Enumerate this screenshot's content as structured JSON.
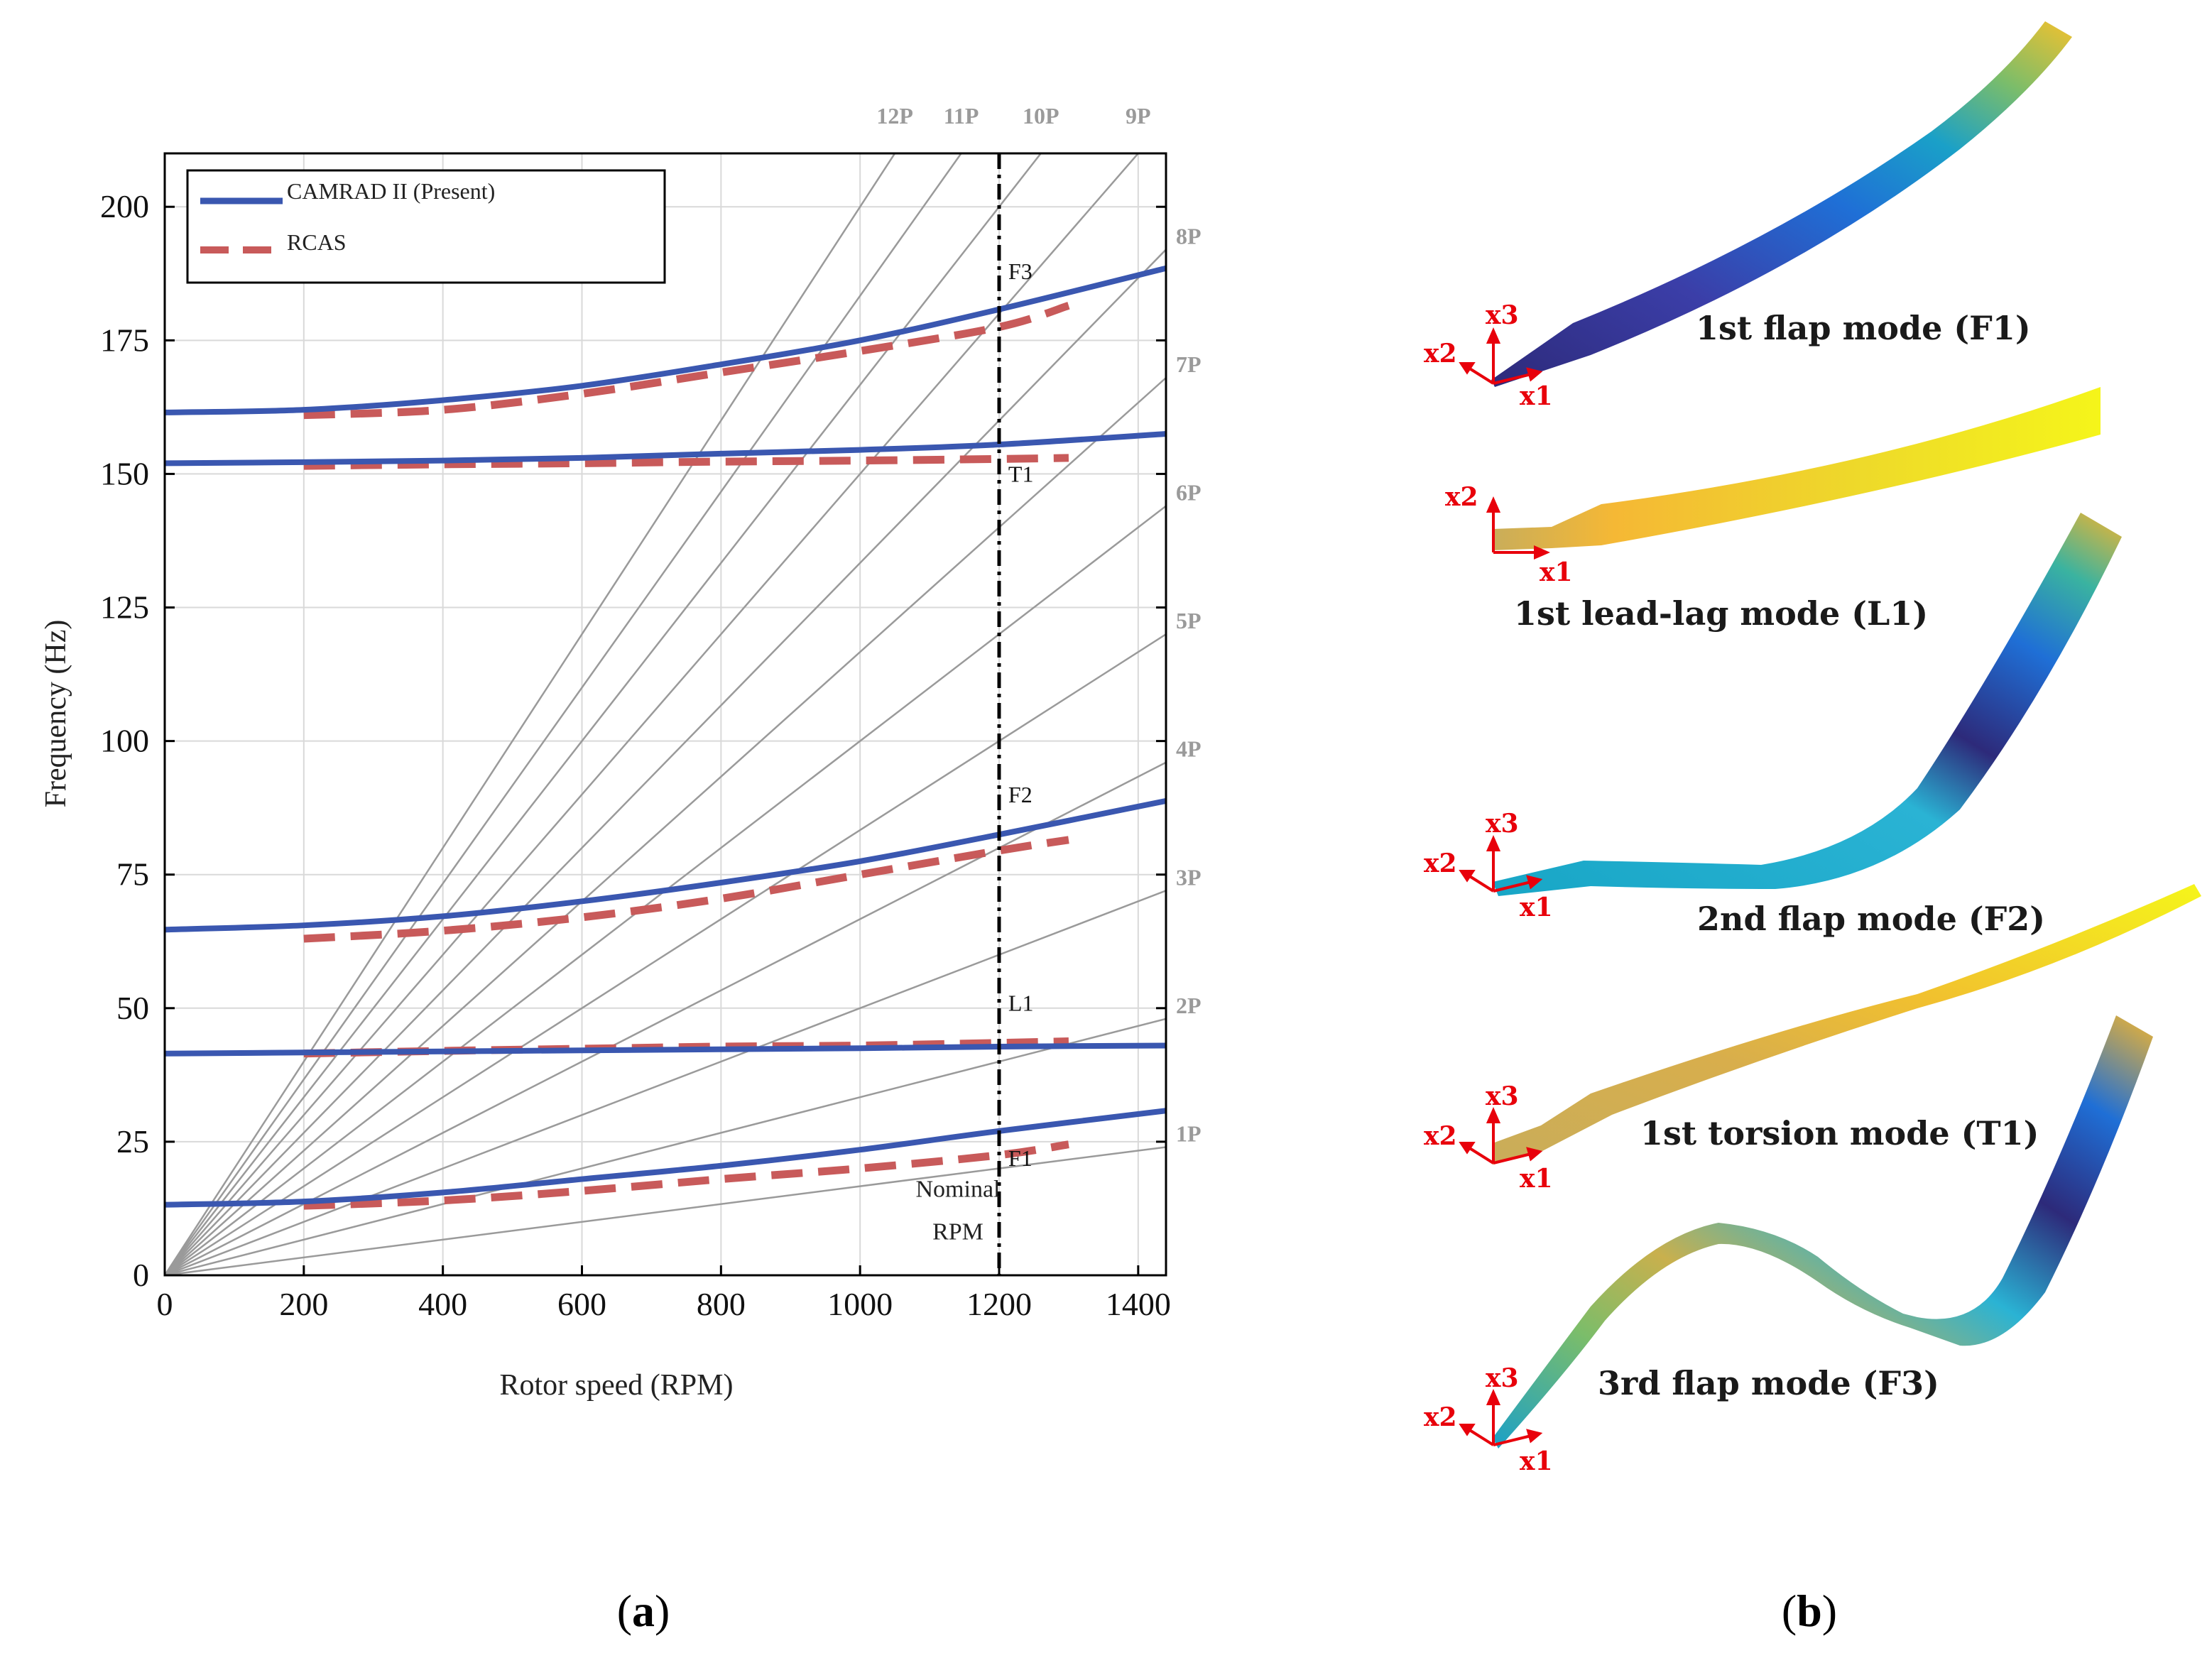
{
  "chart_data": {
    "type": "line",
    "title": "",
    "xlabel": "Rotor speed (RPM)",
    "ylabel": "Frequency (Hz)",
    "xlim": [
      0,
      1440
    ],
    "ylim": [
      0,
      210
    ],
    "xticks": [
      0,
      200,
      400,
      600,
      800,
      1000,
      1200,
      1400
    ],
    "yticks": [
      0,
      25,
      50,
      75,
      100,
      125,
      150,
      175,
      200
    ],
    "grid": true,
    "legend": {
      "position": "top-left",
      "entries": [
        {
          "label": "CAMRAD II (Present)",
          "color": "#3a57b0",
          "style": "solid"
        },
        {
          "label": "RCAS",
          "color": "#c85a5a",
          "style": "dashed"
        }
      ]
    },
    "per_rev_lines": {
      "color": "#9a9a9a",
      "harmonics": [
        1,
        2,
        3,
        4,
        5,
        6,
        7,
        8,
        9,
        10,
        11,
        12
      ],
      "labels": [
        "1P",
        "2P",
        "3P",
        "4P",
        "5P",
        "6P",
        "7P",
        "8P",
        "9P",
        "10P",
        "11P",
        "12P"
      ]
    },
    "nominal_rpm": {
      "value": 1200,
      "label_line1": "Nominal",
      "label_line2": "RPM"
    },
    "series": [
      {
        "name": "CAMRAD II (Present)",
        "mode": "F1",
        "x": [
          0,
          200,
          400,
          600,
          800,
          1000,
          1200,
          1440
        ],
        "values": [
          13.2,
          13.8,
          15.5,
          18.0,
          20.5,
          23.5,
          27.0,
          30.8
        ]
      },
      {
        "name": "CAMRAD II (Present)",
        "mode": "L1",
        "x": [
          0,
          200,
          400,
          600,
          800,
          1000,
          1200,
          1440
        ],
        "values": [
          41.5,
          41.7,
          41.9,
          42.1,
          42.3,
          42.5,
          42.8,
          43.0
        ]
      },
      {
        "name": "CAMRAD II (Present)",
        "mode": "F2",
        "x": [
          0,
          200,
          400,
          600,
          800,
          1000,
          1200,
          1440
        ],
        "values": [
          64.7,
          65.5,
          67.2,
          70.0,
          73.5,
          77.5,
          82.5,
          88.8
        ]
      },
      {
        "name": "CAMRAD II (Present)",
        "mode": "T1",
        "x": [
          0,
          200,
          400,
          600,
          800,
          1000,
          1200,
          1440
        ],
        "values": [
          152.0,
          152.2,
          152.5,
          153.0,
          153.8,
          154.5,
          155.5,
          157.5
        ]
      },
      {
        "name": "CAMRAD II (Present)",
        "mode": "F3",
        "x": [
          0,
          200,
          400,
          600,
          800,
          1000,
          1200,
          1440
        ],
        "values": [
          161.5,
          162.0,
          163.8,
          166.5,
          170.5,
          175.0,
          180.8,
          188.5
        ]
      },
      {
        "name": "RCAS",
        "mode": "F1",
        "x": [
          200,
          400,
          600,
          800,
          1000,
          1200,
          1300
        ],
        "values": [
          13.0,
          14.0,
          15.8,
          18.0,
          20.0,
          22.5,
          24.5
        ]
      },
      {
        "name": "RCAS",
        "mode": "L1",
        "x": [
          200,
          400,
          600,
          800,
          1000,
          1200,
          1300
        ],
        "values": [
          41.5,
          42.0,
          42.4,
          42.8,
          43.0,
          43.5,
          43.8
        ]
      },
      {
        "name": "RCAS",
        "mode": "F2",
        "x": [
          200,
          400,
          600,
          800,
          1000,
          1200,
          1300
        ],
        "values": [
          63.0,
          64.5,
          67.0,
          70.5,
          75.0,
          79.5,
          81.5
        ]
      },
      {
        "name": "RCAS",
        "mode": "T1",
        "x": [
          200,
          400,
          600,
          800,
          1000,
          1200,
          1300
        ],
        "values": [
          151.5,
          151.8,
          152.0,
          152.3,
          152.5,
          152.8,
          153.0
        ]
      },
      {
        "name": "RCAS",
        "mode": "F3",
        "x": [
          200,
          400,
          600,
          800,
          1000,
          1200,
          1300
        ],
        "values": [
          161.0,
          162.0,
          165.0,
          169.0,
          173.0,
          177.5,
          181.5
        ]
      }
    ],
    "mode_labels": [
      {
        "text": "F1",
        "x": 1205,
        "y": 20.5
      },
      {
        "text": "L1",
        "x": 1205,
        "y": 49.5
      },
      {
        "text": "F2",
        "x": 1205,
        "y": 88.5
      },
      {
        "text": "T1",
        "x": 1205,
        "y": 148.5
      },
      {
        "text": "F3",
        "x": 1205,
        "y": 186.5
      }
    ]
  },
  "panel_a": {
    "caption_prefix": "(",
    "caption_letter": "a",
    "caption_suffix": ")"
  },
  "panel_b": {
    "caption_prefix": "(",
    "caption_letter": "b",
    "caption_suffix": ")",
    "modes": [
      {
        "label": "1st flap mode (F1)",
        "axes": [
          "x3",
          "x2",
          "x1"
        ]
      },
      {
        "label": "1st lead-lag mode (L1)",
        "axes": [
          "x2",
          "x1"
        ]
      },
      {
        "label": "2nd flap mode (F2)",
        "axes": [
          "x3",
          "x2",
          "x1"
        ]
      },
      {
        "label": "1st torsion mode (T1)",
        "axes": [
          "x3",
          "x2",
          "x1"
        ]
      },
      {
        "label": "3rd flap mode (F3)",
        "axes": [
          "x3",
          "x2",
          "x1"
        ]
      }
    ],
    "axis_color": "#e8000b"
  }
}
